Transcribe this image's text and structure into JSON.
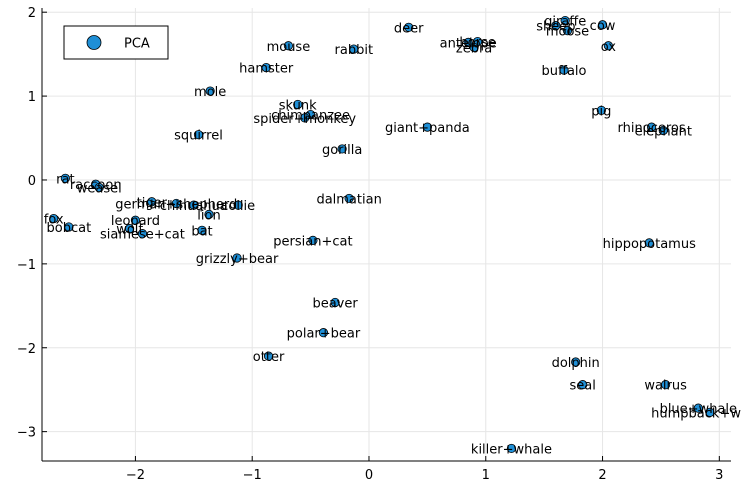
{
  "chart_data": {
    "type": "scatter",
    "xlim": [
      -2.8,
      3.1
    ],
    "ylim": [
      -3.35,
      2.05
    ],
    "xticks": [
      -2,
      -1,
      0,
      1,
      2,
      3
    ],
    "yticks": [
      -3,
      -2,
      -1,
      0,
      1,
      2
    ],
    "grid": true,
    "legend_position": "top-left",
    "marker_color": "#1f8fd6",
    "series": [
      {
        "name": "PCA",
        "points": [
          {
            "label": "giraffe",
            "x": 1.68,
            "y": 1.9
          },
          {
            "label": "cow",
            "x": 2.0,
            "y": 1.85
          },
          {
            "label": "sheep",
            "x": 1.6,
            "y": 1.84
          },
          {
            "label": "moose",
            "x": 1.7,
            "y": 1.78
          },
          {
            "label": "deer",
            "x": 0.34,
            "y": 1.82
          },
          {
            "label": "horse",
            "x": 0.93,
            "y": 1.65
          },
          {
            "label": "antelope",
            "x": 0.85,
            "y": 1.64
          },
          {
            "label": "zebra",
            "x": 0.9,
            "y": 1.58
          },
          {
            "label": "ox",
            "x": 2.05,
            "y": 1.6
          },
          {
            "label": "mouse",
            "x": -0.69,
            "y": 1.6
          },
          {
            "label": "rabbit",
            "x": -0.13,
            "y": 1.56
          },
          {
            "label": "hamster",
            "x": -0.88,
            "y": 1.34
          },
          {
            "label": "buffalo",
            "x": 1.67,
            "y": 1.31
          },
          {
            "label": "mole",
            "x": -1.36,
            "y": 1.06
          },
          {
            "label": "skunk",
            "x": -0.61,
            "y": 0.9
          },
          {
            "label": "chimpanzee",
            "x": -0.5,
            "y": 0.78
          },
          {
            "label": "spider+monkey",
            "x": -0.55,
            "y": 0.74
          },
          {
            "label": "pig",
            "x": 1.99,
            "y": 0.83
          },
          {
            "label": "giant+panda",
            "x": 0.5,
            "y": 0.63
          },
          {
            "label": "rhinoceros",
            "x": 2.42,
            "y": 0.63
          },
          {
            "label": "elephant",
            "x": 2.52,
            "y": 0.59
          },
          {
            "label": "squirrel",
            "x": -1.46,
            "y": 0.54
          },
          {
            "label": "gorilla",
            "x": -0.23,
            "y": 0.37
          },
          {
            "label": "rat",
            "x": -2.6,
            "y": 0.02
          },
          {
            "label": "raccoon",
            "x": -2.34,
            "y": -0.05
          },
          {
            "label": "weasel",
            "x": -2.31,
            "y": -0.09
          },
          {
            "label": "dalmatian",
            "x": -0.17,
            "y": -0.22
          },
          {
            "label": "tiger",
            "x": -1.86,
            "y": -0.26
          },
          {
            "label": "german+shepherd",
            "x": -1.65,
            "y": -0.28
          },
          {
            "label": "chihuahua",
            "x": -1.5,
            "y": -0.3
          },
          {
            "label": "collie",
            "x": -1.12,
            "y": -0.3
          },
          {
            "label": "lion",
            "x": -1.37,
            "y": -0.41
          },
          {
            "label": "fox",
            "x": -2.7,
            "y": -0.46
          },
          {
            "label": "leopard",
            "x": -2.0,
            "y": -0.48
          },
          {
            "label": "bobcat",
            "x": -2.57,
            "y": -0.56
          },
          {
            "label": "wolf",
            "x": -2.05,
            "y": -0.58
          },
          {
            "label": "siamese+cat",
            "x": -1.94,
            "y": -0.64
          },
          {
            "label": "bat",
            "x": -1.43,
            "y": -0.6
          },
          {
            "label": "persian+cat",
            "x": -0.48,
            "y": -0.72
          },
          {
            "label": "hippopotamus",
            "x": 2.4,
            "y": -0.75
          },
          {
            "label": "grizzly+bear",
            "x": -1.13,
            "y": -0.93
          },
          {
            "label": "beaver",
            "x": -0.29,
            "y": -1.46
          },
          {
            "label": "polar+bear",
            "x": -0.39,
            "y": -1.82
          },
          {
            "label": "otter",
            "x": -0.86,
            "y": -2.1
          },
          {
            "label": "dolphin",
            "x": 1.77,
            "y": -2.17
          },
          {
            "label": "seal",
            "x": 1.83,
            "y": -2.44
          },
          {
            "label": "walrus",
            "x": 2.54,
            "y": -2.44
          },
          {
            "label": "blue+whale",
            "x": 2.82,
            "y": -2.72
          },
          {
            "label": "humpback+whale",
            "x": 2.92,
            "y": -2.77
          },
          {
            "label": "killer+whale",
            "x": 1.22,
            "y": -3.2
          }
        ]
      }
    ]
  }
}
